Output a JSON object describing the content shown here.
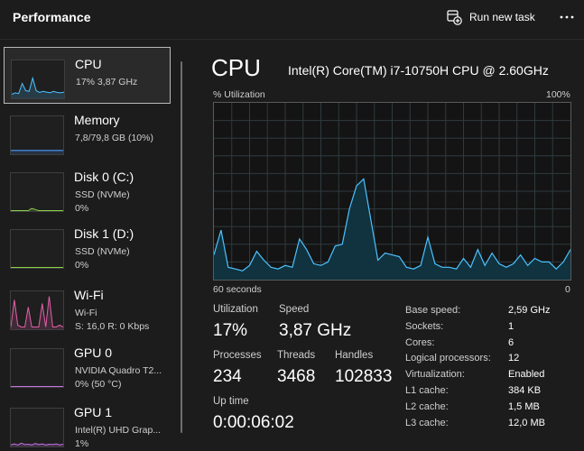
{
  "header": {
    "title": "Performance",
    "run_new_task": "Run new task",
    "icons": {
      "run_task": "task-add-icon",
      "more": "more-dots-icon"
    }
  },
  "sidebar": {
    "items": [
      {
        "id": "cpu",
        "title": "CPU",
        "line1": "17% 3,87 GHz",
        "line2": "",
        "graph_color": "#4cc2ff",
        "selected": true,
        "series": [
          10,
          14,
          12,
          40,
          20,
          18,
          55,
          20,
          15,
          18,
          16,
          14,
          18,
          15,
          14,
          16
        ]
      },
      {
        "id": "memory",
        "title": "Memory",
        "line1": "7,8/79,8 GB (10%)",
        "line2": "",
        "graph_color": "#4c9aff",
        "level": 10
      },
      {
        "id": "disk0",
        "title": "Disk 0 (C:)",
        "line1": "SSD (NVMe)",
        "line2": "0%",
        "graph_color": "#8dd14b",
        "series": [
          0,
          0,
          0,
          0,
          0,
          0,
          6,
          3,
          0,
          0,
          0,
          0,
          0,
          0,
          0,
          0
        ]
      },
      {
        "id": "disk1",
        "title": "Disk 1 (D:)",
        "line1": "SSD (NVMe)",
        "line2": "0%",
        "graph_color": "#8dd14b",
        "series": [
          0,
          0,
          0,
          0,
          0,
          0,
          0,
          0,
          0,
          0,
          0,
          0,
          0,
          0,
          0,
          0
        ]
      },
      {
        "id": "wifi",
        "title": "Wi-Fi",
        "line1": "Wi-Fi",
        "line2": "S: 16,0 R: 0 Kbps",
        "graph_color": "#e060a8",
        "series": [
          5,
          80,
          10,
          5,
          5,
          60,
          5,
          5,
          5,
          70,
          5,
          90,
          5,
          5,
          10,
          5
        ]
      },
      {
        "id": "gpu0",
        "title": "GPU 0",
        "line1": "NVIDIA Quadro T2...",
        "line2": "0% (50 °C)",
        "graph_color": "#c573e8",
        "series": [
          0,
          0,
          0,
          0,
          0,
          0,
          0,
          0,
          0,
          0,
          0,
          0,
          0,
          0,
          0,
          0
        ]
      },
      {
        "id": "gpu1",
        "title": "GPU 1",
        "line1": "Intel(R) UHD Grap...",
        "line2": "1%",
        "graph_color": "#c573e8",
        "series": [
          3,
          6,
          3,
          8,
          4,
          5,
          3,
          7,
          4,
          6,
          3,
          5,
          4,
          6,
          3,
          5
        ]
      }
    ]
  },
  "main": {
    "title": "CPU",
    "model": "Intel(R) Core(TM) i7-10750H CPU @ 2.60GHz",
    "y_label": "% Utilization",
    "y_max_label": "100%",
    "x_left_label": "60 seconds",
    "x_right_label": "0",
    "graph_line_color": "#4cc2ff",
    "graph_fill_color": "#10333f",
    "grid_color": "#2f3a3f",
    "utilization_history": [
      14,
      28,
      7,
      6,
      5,
      8,
      16,
      11,
      7,
      6,
      8,
      7,
      23,
      17,
      9,
      8,
      10,
      19,
      20,
      40,
      53,
      57,
      34,
      11,
      15,
      14,
      13,
      7,
      6,
      8,
      24,
      9,
      7,
      7,
      6,
      12,
      7,
      17,
      8,
      15,
      9,
      7,
      9,
      14,
      8,
      12,
      10,
      10,
      6,
      10,
      17
    ]
  },
  "stats": {
    "utilization_label": "Utilization",
    "utilization": "17%",
    "speed_label": "Speed",
    "speed": "3,87 GHz",
    "processes_label": "Processes",
    "processes": "234",
    "threads_label": "Threads",
    "threads": "3468",
    "handles_label": "Handles",
    "handles": "102833",
    "uptime_label": "Up time",
    "uptime": "0:00:06:02"
  },
  "specs": [
    {
      "key": "Base speed:",
      "value": "2,59 GHz"
    },
    {
      "key": "Sockets:",
      "value": "1"
    },
    {
      "key": "Cores:",
      "value": "6"
    },
    {
      "key": "Logical processors:",
      "value": "12"
    },
    {
      "key": "Virtualization:",
      "value": "Enabled"
    },
    {
      "key": "L1 cache:",
      "value": "384 KB"
    },
    {
      "key": "L2 cache:",
      "value": "1,5 MB"
    },
    {
      "key": "L3 cache:",
      "value": "12,0 MB"
    }
  ]
}
